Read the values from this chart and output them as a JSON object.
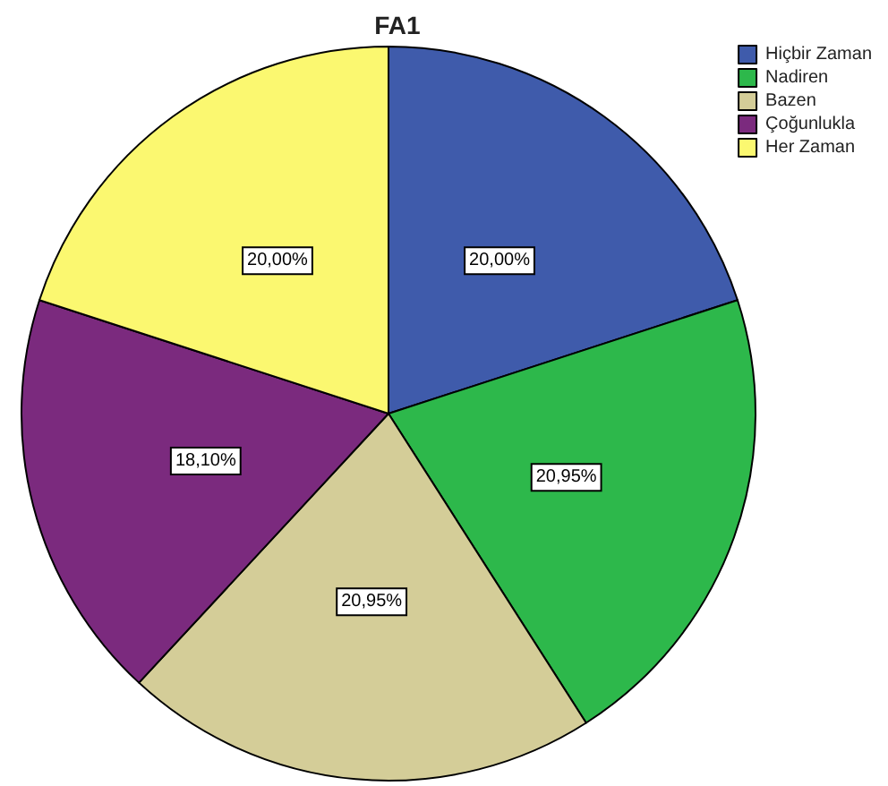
{
  "chart_data": {
    "type": "pie",
    "title": "FA1",
    "categories": [
      "Hiçbir Zaman",
      "Nadiren",
      "Bazen",
      "Çoğunlukla",
      "Her Zaman"
    ],
    "values": [
      20.0,
      20.95,
      20.95,
      18.1,
      20.0
    ],
    "value_labels": [
      "20,00%",
      "20,95%",
      "20,95%",
      "18,10%",
      "20,00%"
    ],
    "colors": [
      "#3f5bab",
      "#2db84b",
      "#d4cd98",
      "#7b2a7e",
      "#fbf870"
    ],
    "legend": "top right"
  }
}
